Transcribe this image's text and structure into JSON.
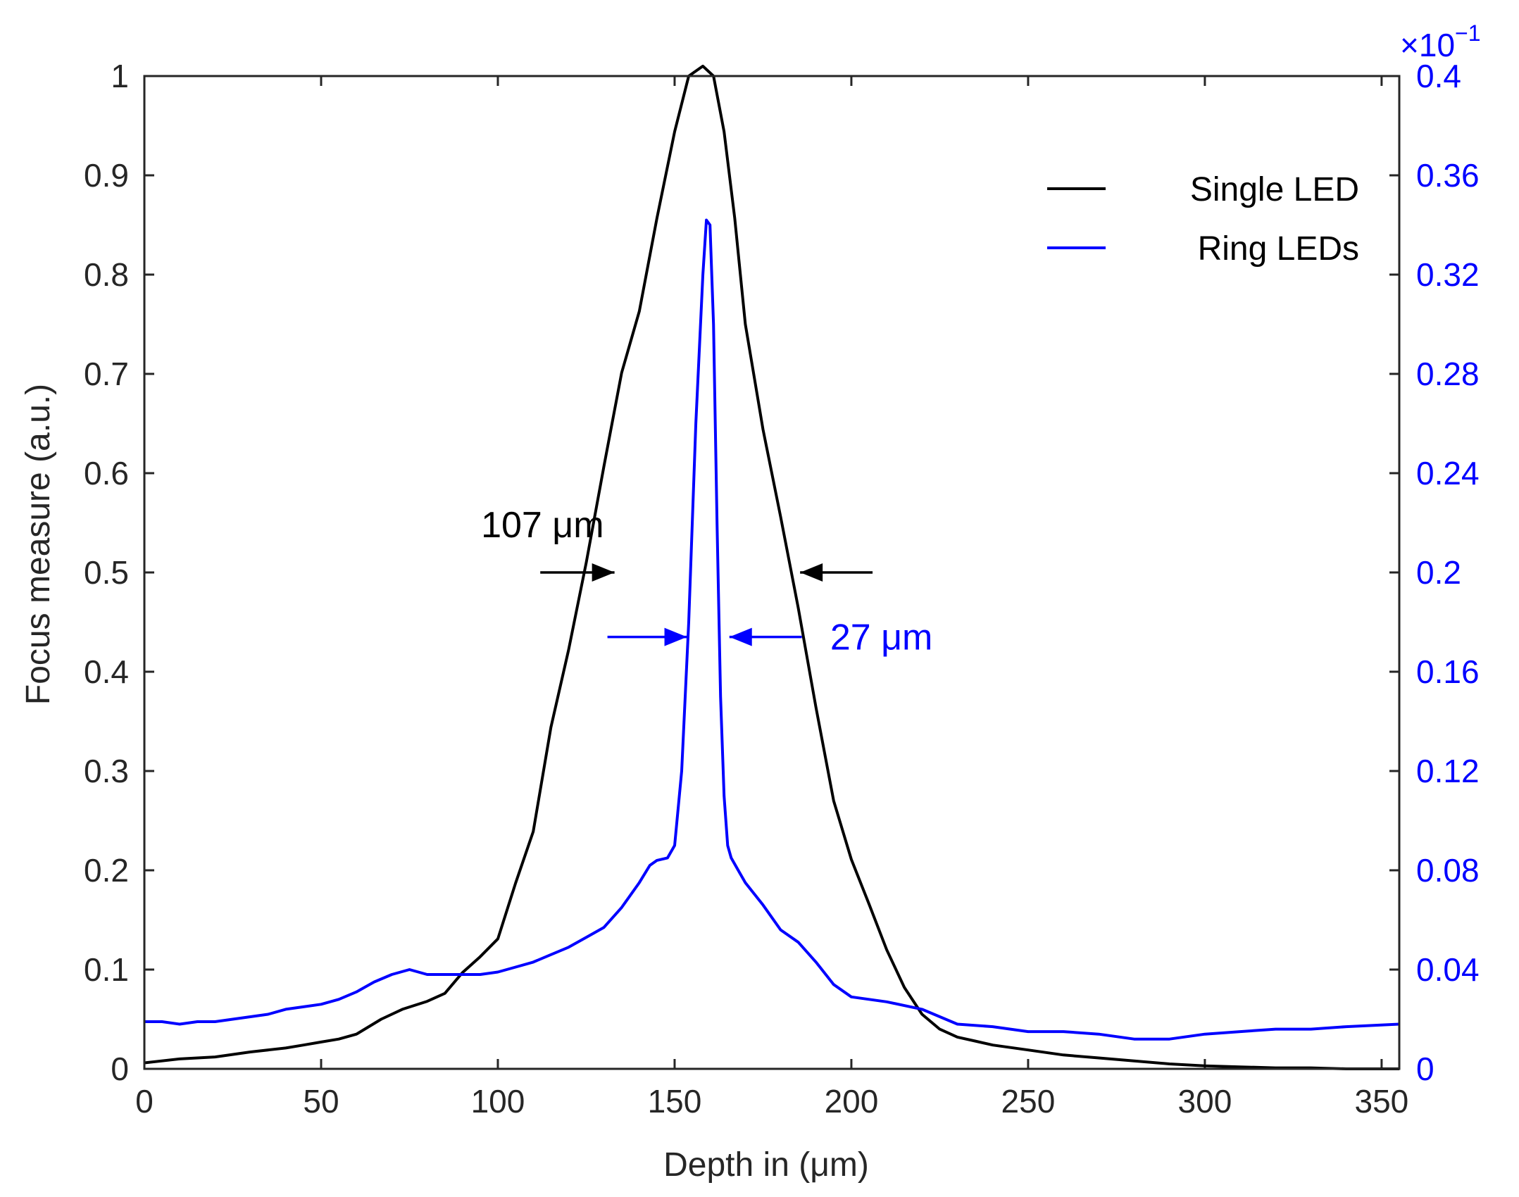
{
  "chart_data": {
    "type": "line",
    "xlabel": "Depth in (μm)",
    "ylabel": "Focus measure (a.u.)",
    "y2_exponent_label": "×10",
    "y2_exponent_power": "−1",
    "xlim": [
      0,
      355
    ],
    "ylim": [
      0,
      1.0
    ],
    "y2lim": [
      0,
      0.4
    ],
    "x_ticks": [
      "0",
      "50",
      "100",
      "150",
      "200",
      "250",
      "300",
      "350"
    ],
    "x_tick_values": [
      0,
      50,
      100,
      150,
      200,
      250,
      300,
      350
    ],
    "y_ticks": [
      "0",
      "0.1",
      "0.2",
      "0.3",
      "0.4",
      "0.5",
      "0.6",
      "0.7",
      "0.8",
      "0.9",
      "1"
    ],
    "y_tick_values": [
      0,
      0.1,
      0.2,
      0.3,
      0.4,
      0.5,
      0.6,
      0.7,
      0.8,
      0.9,
      1.0
    ],
    "y2_ticks": [
      "0",
      "0.04",
      "0.08",
      "0.12",
      "0.16",
      "0.2",
      "0.24",
      "0.28",
      "0.32",
      "0.36",
      "0.4"
    ],
    "y2_tick_values": [
      0,
      0.04,
      0.08,
      0.12,
      0.16,
      0.2,
      0.24,
      0.28,
      0.32,
      0.36,
      0.4
    ],
    "grid": false,
    "legend_position": "top-right",
    "colors": {
      "single": "#000000",
      "ring": "#0000ff",
      "axis": "#262626"
    },
    "series": [
      {
        "name": "Single LED",
        "axis": "left",
        "color": "#000000",
        "x": [
          0,
          10,
          20,
          30,
          40,
          45,
          50,
          55,
          60,
          67,
          73,
          80,
          85,
          90,
          95,
          100,
          105,
          110,
          115,
          120,
          125,
          130,
          135,
          140,
          145,
          150,
          154,
          158,
          161,
          164,
          167,
          170,
          175,
          180,
          185,
          190,
          195,
          200,
          205,
          210,
          215,
          220,
          225,
          230,
          235,
          240,
          250,
          260,
          270,
          280,
          290,
          300,
          310,
          320,
          330,
          340,
          355
        ],
        "y": [
          0.006,
          0.01,
          0.012,
          0.017,
          0.021,
          0.024,
          0.027,
          0.03,
          0.035,
          0.05,
          0.06,
          0.068,
          0.076,
          0.097,
          0.113,
          0.131,
          0.187,
          0.239,
          0.344,
          0.422,
          0.51,
          0.607,
          0.701,
          0.763,
          0.857,
          0.944,
          1.0,
          1.01,
          1.0,
          0.944,
          0.857,
          0.75,
          0.644,
          0.556,
          0.464,
          0.364,
          0.27,
          0.211,
          0.166,
          0.12,
          0.082,
          0.055,
          0.04,
          0.032,
          0.028,
          0.024,
          0.019,
          0.014,
          0.011,
          0.008,
          0.005,
          0.003,
          0.002,
          0.001,
          0.001,
          0.0,
          0.0
        ],
        "fwhm_label": "107 μm"
      },
      {
        "name": "Ring LEDs",
        "axis": "right",
        "color": "#0000ff",
        "x": [
          0,
          5,
          10,
          15,
          20,
          25,
          30,
          35,
          40,
          45,
          50,
          55,
          60,
          65,
          70,
          75,
          80,
          85,
          90,
          95,
          100,
          105,
          110,
          115,
          120,
          125,
          130,
          135,
          140,
          143,
          145,
          148,
          150,
          152,
          154,
          156,
          158,
          159,
          160,
          161,
          162,
          163,
          164,
          165,
          166,
          168,
          170,
          175,
          180,
          185,
          190,
          195,
          200,
          210,
          220,
          230,
          240,
          250,
          260,
          270,
          280,
          290,
          300,
          310,
          320,
          330,
          340,
          355
        ],
        "y": [
          0.019,
          0.019,
          0.018,
          0.019,
          0.019,
          0.02,
          0.021,
          0.022,
          0.024,
          0.025,
          0.026,
          0.028,
          0.031,
          0.035,
          0.038,
          0.04,
          0.038,
          0.038,
          0.038,
          0.038,
          0.039,
          0.041,
          0.043,
          0.046,
          0.049,
          0.053,
          0.057,
          0.065,
          0.075,
          0.082,
          0.084,
          0.085,
          0.09,
          0.12,
          0.18,
          0.26,
          0.32,
          0.342,
          0.34,
          0.3,
          0.22,
          0.15,
          0.11,
          0.09,
          0.085,
          0.08,
          0.075,
          0.066,
          0.056,
          0.051,
          0.043,
          0.034,
          0.029,
          0.027,
          0.024,
          0.018,
          0.017,
          0.015,
          0.015,
          0.014,
          0.012,
          0.012,
          0.014,
          0.015,
          0.016,
          0.016,
          0.017,
          0.018
        ],
        "fwhm_label": "27 μm"
      }
    ]
  }
}
